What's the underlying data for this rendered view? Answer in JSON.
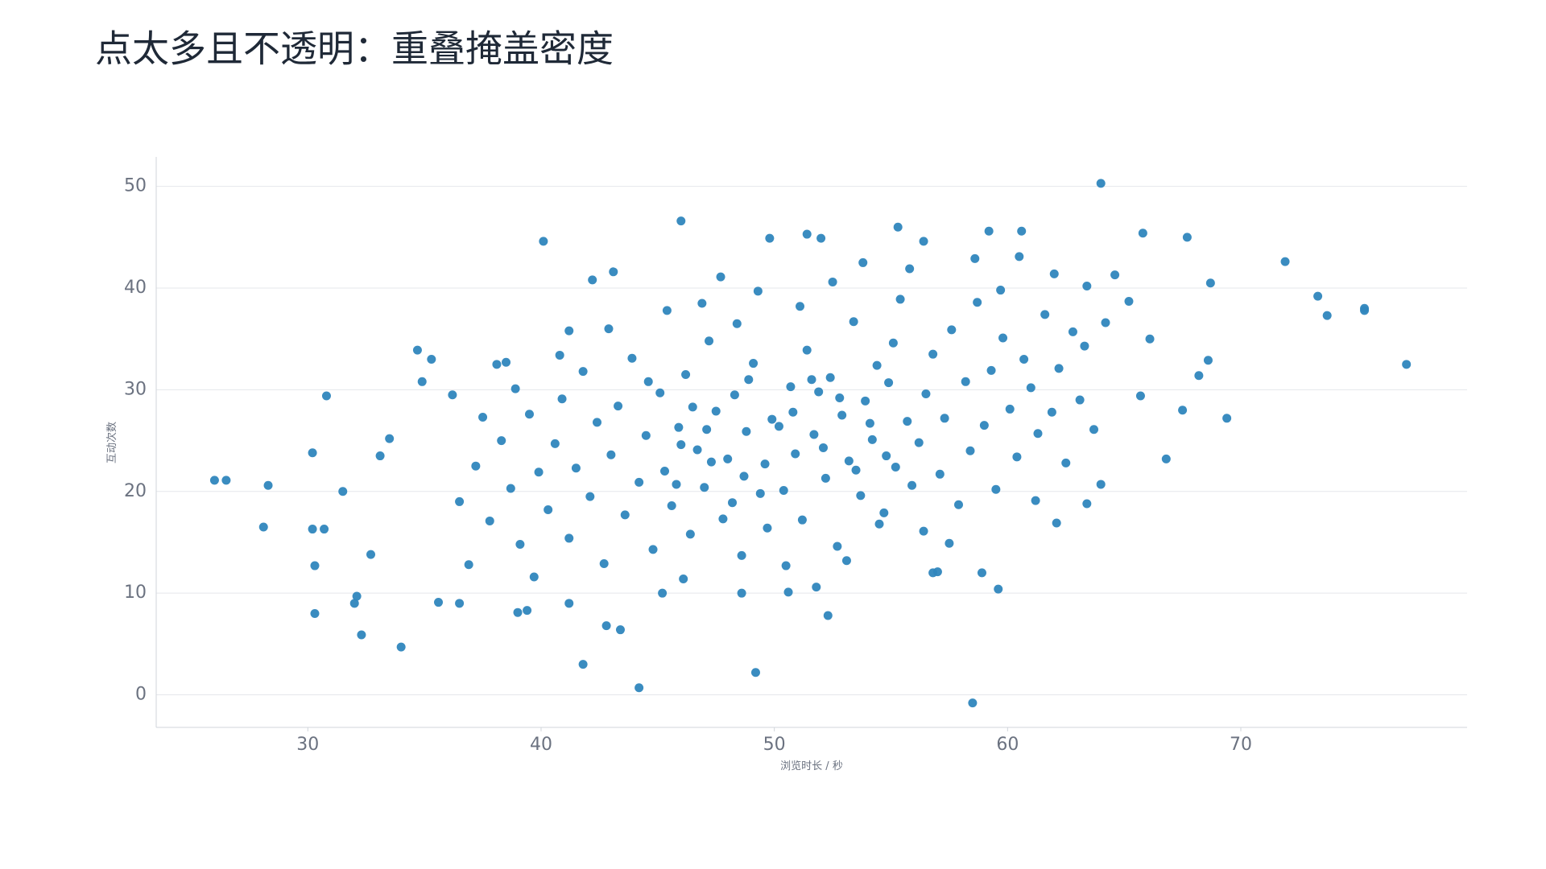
{
  "chart_data": {
    "type": "scatter",
    "title": "点太多且不透明：重叠掩盖密度",
    "x_label": "浏览时长 / 秒",
    "y_label": "互动次数",
    "color": "#2f86bd",
    "grid": true,
    "xlim": [
      23.5,
      79.7
    ],
    "ylim": [
      -3.2,
      52.9
    ],
    "xticks": [
      30,
      40,
      50,
      60,
      70
    ],
    "yticks": [
      0,
      10,
      20,
      30,
      40,
      50
    ],
    "x": [
      26.0,
      26.5,
      28.1,
      28.3,
      30.2,
      30.2,
      30.3,
      30.3,
      30.7,
      30.8,
      31.5,
      32.0,
      32.1,
      32.3,
      32.7,
      33.1,
      33.5,
      34.0,
      34.7,
      34.9,
      35.3,
      35.6,
      36.2,
      36.5,
      38.1,
      38.5,
      40.1,
      41.2,
      41.8,
      42.2,
      43.1,
      43.4,
      44.2,
      46.0,
      49.2,
      49.8,
      51.4,
      52.0,
      52.3,
      55.3,
      56.4,
      58.5,
      59.2,
      59.6,
      60.6,
      64.0,
      65.8,
      66.8,
      67.7,
      68.7,
      69.4,
      71.9,
      73.3,
      73.7,
      75.3,
      75.3,
      77.1,
      68.6,
      68.2,
      67.5,
      64.0,
      63.4,
      62.1,
      56.8,
      57.0,
      58.9,
      50.6,
      48.6,
      45.2,
      41.2,
      39.4,
      39.0,
      42.8,
      36.5,
      37.2,
      37.8,
      38.3,
      38.7,
      39.1,
      39.5,
      39.9,
      40.3,
      40.6,
      40.9,
      41.2,
      41.5,
      41.8,
      42.1,
      42.4,
      42.7,
      43.0,
      43.3,
      43.6,
      43.9,
      44.2,
      44.5,
      44.8,
      36.9,
      37.5,
      38.9,
      39.7,
      40.8,
      42.9,
      45.1,
      45.3,
      45.6,
      45.9,
      46.2,
      46.4,
      46.7,
      47.0,
      47.2,
      47.5,
      47.8,
      48.0,
      48.3,
      48.6,
      48.8,
      49.1,
      49.4,
      49.6,
      49.9,
      45.4,
      46.1,
      46.9,
      47.7,
      48.4,
      49.3,
      44.6,
      45.8,
      46.5,
      47.3,
      48.2,
      48.9,
      49.7,
      47.1,
      46.0,
      48.7,
      50.2,
      50.4,
      50.7,
      50.9,
      51.2,
      51.4,
      51.7,
      51.9,
      52.2,
      52.4,
      52.7,
      52.9,
      53.2,
      53.4,
      53.7,
      53.9,
      54.2,
      54.4,
      54.7,
      54.9,
      55.2,
      55.4,
      55.7,
      55.9,
      50.5,
      51.1,
      51.8,
      52.5,
      53.1,
      53.8,
      54.5,
      55.1,
      55.8,
      50.8,
      51.6,
      52.1,
      52.8,
      53.5,
      54.1,
      54.8,
      56.2,
      56.5,
      56.8,
      57.1,
      57.3,
      57.6,
      57.9,
      58.2,
      58.4,
      58.7,
      59.0,
      59.3,
      59.5,
      59.8,
      60.1,
      60.4,
      60.7,
      61.0,
      61.3,
      61.6,
      61.9,
      62.2,
      62.5,
      62.8,
      63.1,
      63.4,
      63.7,
      56.4,
      57.5,
      58.6,
      59.7,
      60.5,
      61.2,
      62.0,
      63.3,
      64.2,
      64.6,
      65.2,
      65.7,
      66.1
    ],
    "y": [
      21.1,
      21.1,
      16.5,
      20.6,
      23.8,
      16.3,
      12.7,
      8.0,
      16.3,
      29.4,
      20.0,
      9.0,
      9.7,
      5.9,
      13.8,
      23.5,
      25.2,
      4.7,
      33.9,
      30.8,
      33.0,
      9.1,
      29.5,
      9.0,
      32.5,
      32.7,
      44.6,
      35.8,
      3.0,
      40.8,
      41.6,
      6.4,
      0.7,
      46.6,
      2.2,
      44.9,
      45.3,
      44.9,
      7.8,
      46.0,
      44.6,
      -0.8,
      45.6,
      10.4,
      45.6,
      50.3,
      45.4,
      23.2,
      45.0,
      40.5,
      27.2,
      42.6,
      39.2,
      37.3,
      38.0,
      37.8,
      32.5,
      32.9,
      31.4,
      28.0,
      20.7,
      18.8,
      16.9,
      12.0,
      12.1,
      12.0,
      10.1,
      10.0,
      10.0,
      9.0,
      8.3,
      8.1,
      6.8,
      19.0,
      22.5,
      17.1,
      25.0,
      20.3,
      14.8,
      27.6,
      21.9,
      18.2,
      24.7,
      29.1,
      15.4,
      22.3,
      31.8,
      19.5,
      26.8,
      12.9,
      23.6,
      28.4,
      17.7,
      33.1,
      20.9,
      25.5,
      14.3,
      12.8,
      27.3,
      30.1,
      11.6,
      33.4,
      36.0,
      29.7,
      22.0,
      18.6,
      26.3,
      31.5,
      15.8,
      24.1,
      20.4,
      34.8,
      27.9,
      17.3,
      23.2,
      29.5,
      13.7,
      25.9,
      32.6,
      19.8,
      22.7,
      27.1,
      37.8,
      11.4,
      38.5,
      41.1,
      36.5,
      39.7,
      30.8,
      20.7,
      28.3,
      22.9,
      18.9,
      31.0,
      16.4,
      26.1,
      24.6,
      21.5,
      26.4,
      20.1,
      30.3,
      23.7,
      17.2,
      33.9,
      25.6,
      29.8,
      21.3,
      31.2,
      14.6,
      27.5,
      23.0,
      36.7,
      19.6,
      28.9,
      25.1,
      32.4,
      17.9,
      30.7,
      22.4,
      38.9,
      26.9,
      20.6,
      12.7,
      38.2,
      10.6,
      40.6,
      13.2,
      42.5,
      16.8,
      34.6,
      41.9,
      27.8,
      31.0,
      24.3,
      29.2,
      22.1,
      26.7,
      23.5,
      24.8,
      29.6,
      33.5,
      21.7,
      27.2,
      35.9,
      18.7,
      30.8,
      24.0,
      38.6,
      26.5,
      31.9,
      20.2,
      35.1,
      28.1,
      23.4,
      33.0,
      30.2,
      25.7,
      37.4,
      27.8,
      32.1,
      22.8,
      35.7,
      29.0,
      40.2,
      26.1,
      16.1,
      14.9,
      42.9,
      39.8,
      43.1,
      19.1,
      41.4,
      34.3,
      36.6,
      41.3,
      38.7,
      29.4,
      35.0
    ]
  }
}
